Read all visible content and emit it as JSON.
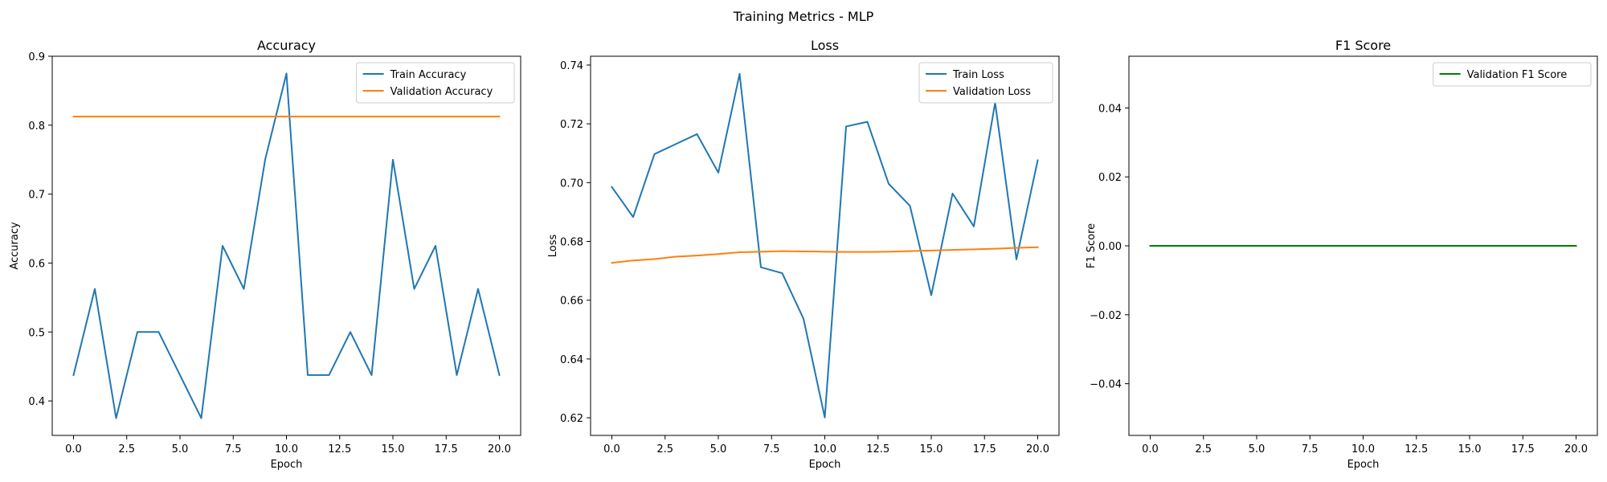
{
  "figure": {
    "suptitle": "Training Metrics - MLP"
  },
  "chart_data": [
    {
      "type": "line",
      "title": "Accuracy",
      "xlabel": "Epoch",
      "ylabel": "Accuracy",
      "xlim": [
        -1.0,
        21.0
      ],
      "ylim": [
        0.35,
        0.9
      ],
      "xticks": [
        0.0,
        2.5,
        5.0,
        7.5,
        10.0,
        12.5,
        15.0,
        17.5,
        20.0
      ],
      "xtick_labels": [
        "0.0",
        "2.5",
        "5.0",
        "7.5",
        "10.0",
        "12.5",
        "15.0",
        "17.5",
        "20.0"
      ],
      "yticks": [
        0.4,
        0.5,
        0.6,
        0.7,
        0.8,
        0.9
      ],
      "ytick_labels": [
        "0.4",
        "0.5",
        "0.6",
        "0.7",
        "0.8",
        "0.9"
      ],
      "grid": false,
      "legend": "top-right",
      "x": [
        0,
        1,
        2,
        3,
        4,
        5,
        6,
        7,
        8,
        9,
        10,
        11,
        12,
        13,
        14,
        15,
        16,
        17,
        18,
        19,
        20
      ],
      "series": [
        {
          "name": "Train Accuracy",
          "color": "#1f77b4",
          "values": [
            0.4375,
            0.5625,
            0.375,
            0.5,
            0.5,
            0.4375,
            0.375,
            0.625,
            0.5625,
            0.75,
            0.875,
            0.4375,
            0.4375,
            0.5,
            0.4375,
            0.75,
            0.5625,
            0.625,
            0.4375,
            0.5625,
            0.4375
          ]
        },
        {
          "name": "Validation Accuracy",
          "color": "#ff7f0e",
          "values": [
            0.8125,
            0.8125,
            0.8125,
            0.8125,
            0.8125,
            0.8125,
            0.8125,
            0.8125,
            0.8125,
            0.8125,
            0.8125,
            0.8125,
            0.8125,
            0.8125,
            0.8125,
            0.8125,
            0.8125,
            0.8125,
            0.8125,
            0.8125,
            0.8125
          ]
        }
      ]
    },
    {
      "type": "line",
      "title": "Loss",
      "xlabel": "Epoch",
      "ylabel": "Loss",
      "xlim": [
        -1.0,
        21.0
      ],
      "ylim": [
        0.614,
        0.743
      ],
      "xticks": [
        0.0,
        2.5,
        5.0,
        7.5,
        10.0,
        12.5,
        15.0,
        17.5,
        20.0
      ],
      "xtick_labels": [
        "0.0",
        "2.5",
        "5.0",
        "7.5",
        "10.0",
        "12.5",
        "15.0",
        "17.5",
        "20.0"
      ],
      "yticks": [
        0.62,
        0.64,
        0.66,
        0.68,
        0.7,
        0.72,
        0.74
      ],
      "ytick_labels": [
        "0.62",
        "0.64",
        "0.66",
        "0.68",
        "0.70",
        "0.72",
        "0.74"
      ],
      "grid": false,
      "legend": "top-right",
      "x": [
        0,
        1,
        2,
        3,
        4,
        5,
        6,
        7,
        8,
        9,
        10,
        11,
        12,
        13,
        14,
        15,
        16,
        17,
        18,
        19,
        20
      ],
      "series": [
        {
          "name": "Train Loss",
          "color": "#1f77b4",
          "values": [
            0.6985,
            0.6883,
            0.7097,
            0.7131,
            0.7165,
            0.7034,
            0.737,
            0.6712,
            0.6692,
            0.6537,
            0.6201,
            0.7191,
            0.7207,
            0.6996,
            0.6921,
            0.6617,
            0.6963,
            0.6851,
            0.7272,
            0.6739,
            0.7076
          ]
        },
        {
          "name": "Validation Loss",
          "color": "#ff7f0e",
          "values": [
            0.6727,
            0.6735,
            0.674,
            0.6748,
            0.6752,
            0.6757,
            0.6763,
            0.6765,
            0.6767,
            0.6766,
            0.6765,
            0.6764,
            0.6764,
            0.6765,
            0.6767,
            0.6769,
            0.6771,
            0.6773,
            0.6775,
            0.6778,
            0.678
          ]
        }
      ]
    },
    {
      "type": "line",
      "title": "F1 Score",
      "xlabel": "Epoch",
      "ylabel": "F1 Score",
      "xlim": [
        -1.0,
        21.0
      ],
      "ylim": [
        -0.055,
        0.055
      ],
      "xticks": [
        0.0,
        2.5,
        5.0,
        7.5,
        10.0,
        12.5,
        15.0,
        17.5,
        20.0
      ],
      "xtick_labels": [
        "0.0",
        "2.5",
        "5.0",
        "7.5",
        "10.0",
        "12.5",
        "15.0",
        "17.5",
        "20.0"
      ],
      "yticks": [
        -0.04,
        -0.02,
        0.0,
        0.02,
        0.04
      ],
      "ytick_labels": [
        "−0.04",
        "−0.02",
        "0.00",
        "0.02",
        "0.04"
      ],
      "grid": false,
      "legend": "top-right",
      "x": [
        0,
        1,
        2,
        3,
        4,
        5,
        6,
        7,
        8,
        9,
        10,
        11,
        12,
        13,
        14,
        15,
        16,
        17,
        18,
        19,
        20
      ],
      "series": [
        {
          "name": "Validation F1 Score",
          "color": "#008000",
          "values": [
            0,
            0,
            0,
            0,
            0,
            0,
            0,
            0,
            0,
            0,
            0,
            0,
            0,
            0,
            0,
            0,
            0,
            0,
            0,
            0,
            0
          ]
        }
      ]
    }
  ]
}
